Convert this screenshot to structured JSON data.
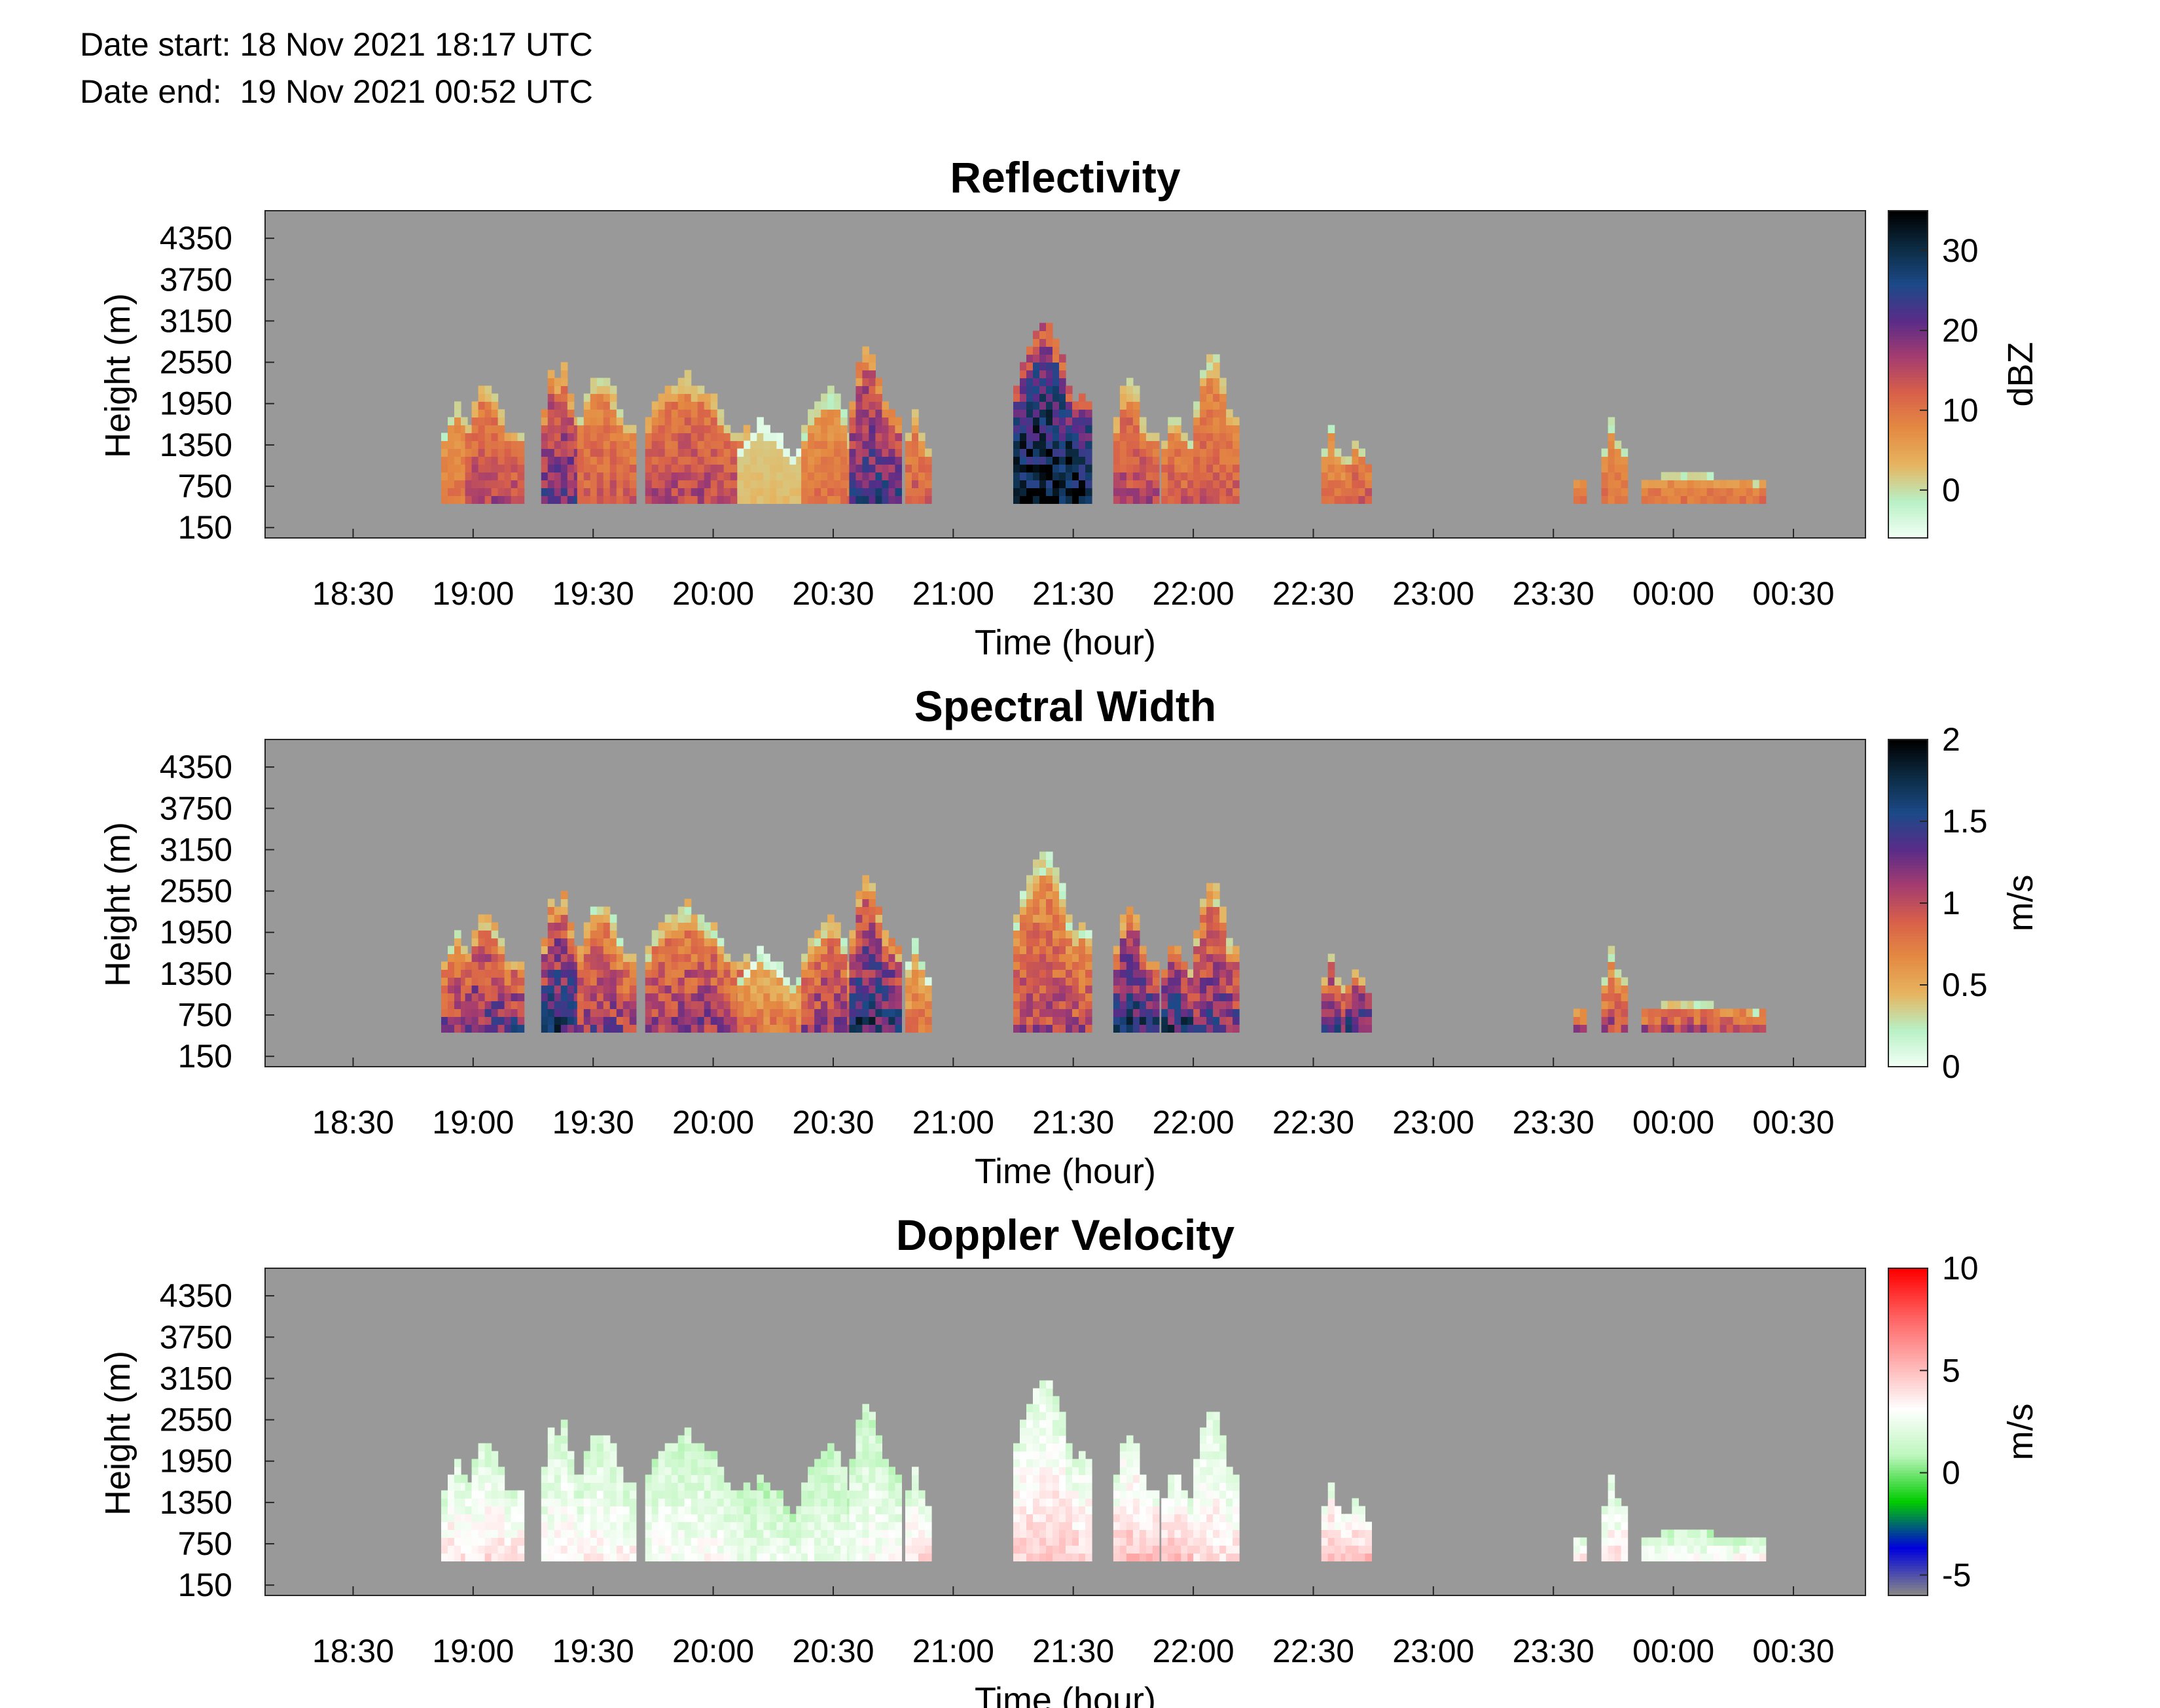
{
  "header": {
    "date_start": "Date start: 18 Nov 2021 18:17 UTC",
    "date_end": "Date end:  19 Nov 2021 00:52 UTC"
  },
  "chart_data": [
    {
      "type": "heatmap",
      "title": "Reflectivity",
      "xlabel": "Time (hour)",
      "ylabel": "Height (m)",
      "x_ticks": [
        "18:30",
        "19:00",
        "19:30",
        "20:00",
        "20:30",
        "21:00",
        "21:30",
        "22:00",
        "22:30",
        "23:00",
        "23:30",
        "00:00",
        "00:30"
      ],
      "y_ticks": [
        "150",
        "750",
        "1350",
        "1950",
        "2550",
        "3150",
        "3750",
        "4350"
      ],
      "colorbar": {
        "label": "dBZ",
        "ticks": [
          0,
          10,
          20,
          30
        ],
        "range": [
          -6,
          35
        ],
        "colors": [
          "#f0fff4",
          "#b8f0c4",
          "#e6b460",
          "#e48a42",
          "#d8604a",
          "#a43c70",
          "#582c88",
          "#1c4a88",
          "#0c2c44",
          "#000000"
        ]
      },
      "missing_color": "#999999",
      "echoes": [
        {
          "start": "18:52",
          "end": "19:02",
          "top": 2000,
          "value": 8
        },
        {
          "start": "18:58",
          "end": "19:12",
          "top": 2250,
          "value": 12
        },
        {
          "start": "19:17",
          "end": "19:29",
          "top": 2600,
          "value": 16
        },
        {
          "start": "19:26",
          "end": "19:40",
          "top": 2500,
          "value": 10
        },
        {
          "start": "19:43",
          "end": "20:10",
          "top": 2400,
          "value": 12
        },
        {
          "start": "20:06",
          "end": "20:22",
          "top": 1700,
          "value": 2
        },
        {
          "start": "20:22",
          "end": "20:38",
          "top": 2200,
          "value": 8
        },
        {
          "start": "20:34",
          "end": "20:46",
          "top": 2800,
          "value": 18
        },
        {
          "start": "20:48",
          "end": "20:53",
          "top": 2000,
          "value": 10
        },
        {
          "start": "21:15",
          "end": "21:34",
          "top": 3200,
          "value": 26
        },
        {
          "start": "21:40",
          "end": "21:50",
          "top": 2300,
          "value": 12
        },
        {
          "start": "21:52",
          "end": "22:00",
          "top": 1900,
          "value": 10
        },
        {
          "start": "22:00",
          "end": "22:11",
          "top": 2800,
          "value": 10
        },
        {
          "start": "22:32",
          "end": "22:37",
          "top": 1600,
          "value": 8
        },
        {
          "start": "22:38",
          "end": "22:44",
          "top": 1500,
          "value": 10
        },
        {
          "start": "23:35",
          "end": "23:37",
          "top": 900,
          "value": 8
        },
        {
          "start": "23:42",
          "end": "23:47",
          "top": 1700,
          "value": 8
        },
        {
          "start": "23:52",
          "end": "00:23",
          "top": 900,
          "value": 8
        }
      ]
    },
    {
      "type": "heatmap",
      "title": "Spectral Width",
      "xlabel": "Time (hour)",
      "ylabel": "Height (m)",
      "x_ticks": [
        "18:30",
        "19:00",
        "19:30",
        "20:00",
        "20:30",
        "21:00",
        "21:30",
        "22:00",
        "22:30",
        "23:00",
        "23:30",
        "00:00",
        "00:30"
      ],
      "y_ticks": [
        "150",
        "750",
        "1350",
        "1950",
        "2550",
        "3150",
        "3750",
        "4350"
      ],
      "colorbar": {
        "label": "m/s",
        "ticks": [
          0,
          0.5,
          1,
          1.5,
          2
        ],
        "range": [
          0,
          2
        ],
        "colors": [
          "#f0fff4",
          "#b8f0c4",
          "#e6b460",
          "#e48a42",
          "#d8604a",
          "#a43c70",
          "#582c88",
          "#1c4a88",
          "#0c2c44",
          "#000000"
        ]
      },
      "missing_color": "#999999",
      "echoes": [
        {
          "start": "18:52",
          "end": "19:02",
          "top": 2000,
          "value": 0.9
        },
        {
          "start": "18:58",
          "end": "19:12",
          "top": 2250,
          "value": 1.0
        },
        {
          "start": "19:17",
          "end": "19:29",
          "top": 2600,
          "value": 1.2
        },
        {
          "start": "19:26",
          "end": "19:40",
          "top": 2500,
          "value": 0.9
        },
        {
          "start": "19:43",
          "end": "20:10",
          "top": 2400,
          "value": 0.9
        },
        {
          "start": "20:06",
          "end": "20:22",
          "top": 1700,
          "value": 0.6
        },
        {
          "start": "20:22",
          "end": "20:38",
          "top": 2200,
          "value": 0.9
        },
        {
          "start": "20:34",
          "end": "20:46",
          "top": 2800,
          "value": 1.2
        },
        {
          "start": "20:48",
          "end": "20:53",
          "top": 2000,
          "value": 0.6
        },
        {
          "start": "21:15",
          "end": "21:34",
          "top": 3200,
          "value": 0.8
        },
        {
          "start": "21:40",
          "end": "21:50",
          "top": 2300,
          "value": 1.2
        },
        {
          "start": "21:52",
          "end": "22:00",
          "top": 1900,
          "value": 1.2
        },
        {
          "start": "22:00",
          "end": "22:11",
          "top": 2800,
          "value": 1.0
        },
        {
          "start": "22:32",
          "end": "22:37",
          "top": 1600,
          "value": 1.0
        },
        {
          "start": "22:38",
          "end": "22:44",
          "top": 1500,
          "value": 1.1
        },
        {
          "start": "23:35",
          "end": "23:37",
          "top": 900,
          "value": 0.8
        },
        {
          "start": "23:42",
          "end": "23:47",
          "top": 1700,
          "value": 0.8
        },
        {
          "start": "23:52",
          "end": "00:23",
          "top": 900,
          "value": 0.8
        }
      ]
    },
    {
      "type": "heatmap",
      "title": "Doppler Velocity",
      "xlabel": "Time (hour)",
      "ylabel": "Height (m)",
      "x_ticks": [
        "18:30",
        "19:00",
        "19:30",
        "20:00",
        "20:30",
        "21:00",
        "21:30",
        "22:00",
        "22:30",
        "23:00",
        "23:30",
        "00:00",
        "00:30"
      ],
      "y_ticks": [
        "150",
        "750",
        "1350",
        "1950",
        "2550",
        "3150",
        "3750",
        "4350"
      ],
      "colorbar": {
        "label": "m/s",
        "ticks": [
          -5,
          0,
          5,
          10
        ],
        "range": [
          -6,
          10
        ],
        "colors": [
          "#888888",
          "#0000dd",
          "#00cc00",
          "#bdf6bd",
          "#ffffff",
          "#ffb0b0",
          "#ff6060",
          "#ff0000"
        ]
      },
      "missing_color": "#999999",
      "echoes": [
        {
          "start": "18:52",
          "end": "19:02",
          "top": 2000,
          "value": 4
        },
        {
          "start": "18:58",
          "end": "19:12",
          "top": 2250,
          "value": 4
        },
        {
          "start": "19:17",
          "end": "19:29",
          "top": 2600,
          "value": 3.5
        },
        {
          "start": "19:26",
          "end": "19:40",
          "top": 2500,
          "value": 3.5
        },
        {
          "start": "19:43",
          "end": "20:10",
          "top": 2400,
          "value": 3
        },
        {
          "start": "20:06",
          "end": "20:22",
          "top": 1700,
          "value": 2.5
        },
        {
          "start": "20:22",
          "end": "20:38",
          "top": 2200,
          "value": 2.5
        },
        {
          "start": "20:34",
          "end": "20:46",
          "top": 2800,
          "value": 3
        },
        {
          "start": "20:48",
          "end": "20:53",
          "top": 2000,
          "value": 4
        },
        {
          "start": "21:15",
          "end": "21:34",
          "top": 3200,
          "value": 4.5
        },
        {
          "start": "21:40",
          "end": "21:50",
          "top": 2300,
          "value": 5
        },
        {
          "start": "21:52",
          "end": "22:00",
          "top": 1900,
          "value": 5
        },
        {
          "start": "22:00",
          "end": "22:11",
          "top": 2800,
          "value": 4
        },
        {
          "start": "22:32",
          "end": "22:37",
          "top": 1600,
          "value": 5
        },
        {
          "start": "22:38",
          "end": "22:44",
          "top": 1500,
          "value": 5
        },
        {
          "start": "23:35",
          "end": "23:37",
          "top": 900,
          "value": 4
        },
        {
          "start": "23:42",
          "end": "23:47",
          "top": 1700,
          "value": 4
        },
        {
          "start": "23:52",
          "end": "00:23",
          "top": 900,
          "value": 3
        }
      ]
    }
  ]
}
